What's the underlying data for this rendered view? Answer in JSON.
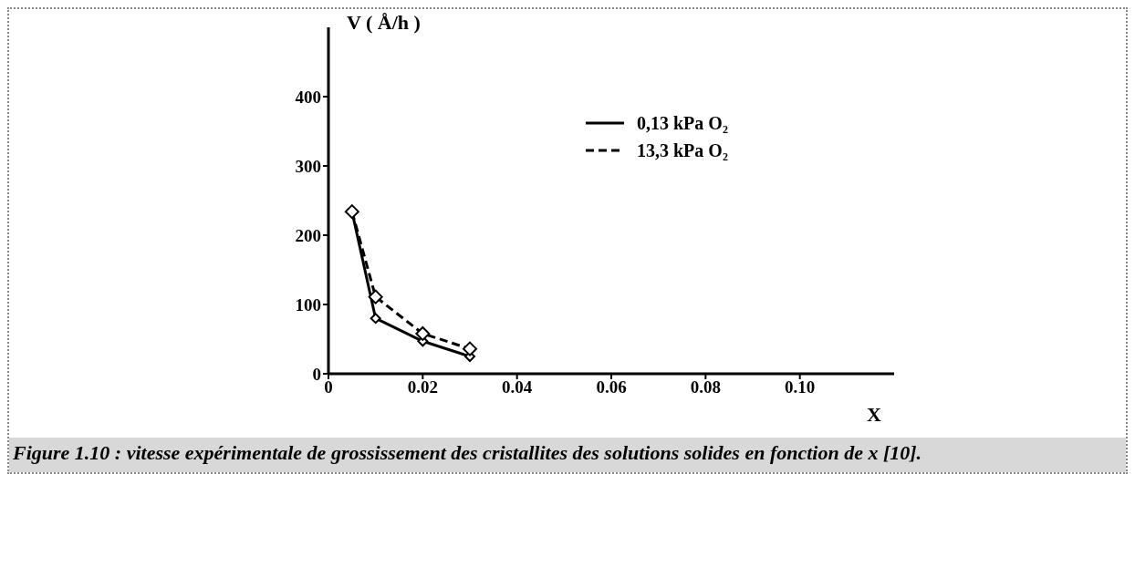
{
  "chart_data": {
    "type": "line",
    "xlabel": "X",
    "ylabel": "V ( Å/h )",
    "xlim": [
      0,
      0.12
    ],
    "xticks": [
      0,
      0.02,
      0.04,
      0.06,
      0.08,
      {
        "value": 0.1,
        "label": "0.10"
      }
    ],
    "ylim": [
      0,
      500
    ],
    "yticks": [
      0,
      100,
      200,
      300,
      400
    ],
    "x": [
      0.005,
      0.01,
      0.02,
      0.03
    ],
    "series": [
      {
        "name": "0,13 kPa O₂",
        "color": "#000000",
        "values": [
          234,
          80,
          47,
          25
        ],
        "line_style": "solid"
      },
      {
        "name": "13,3 kPa O₂",
        "color": "#000000",
        "values": [
          234,
          111,
          58,
          36
        ],
        "line_style": "dashed"
      }
    ],
    "marker": "diamond",
    "grid": false,
    "legend": "top",
    "annotations": [
      "Figure 1.10 : vitesse expérimentale de grossissement des cristallites des solutions solides en fonction de x [10]."
    ]
  }
}
